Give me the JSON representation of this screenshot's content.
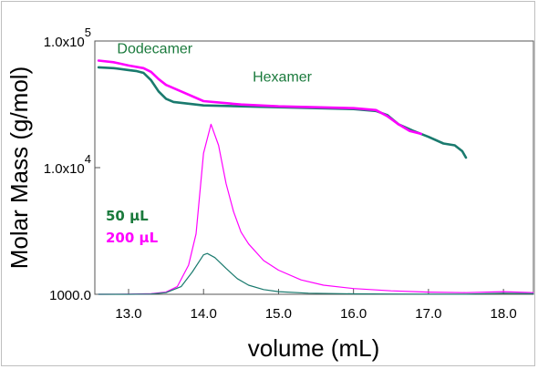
{
  "chart_data": {
    "type": "line",
    "xlabel": "volume (mL)",
    "ylabel": "Molar Mass (g/mol)",
    "xlim": [
      12.55,
      18.4
    ],
    "ylim": [
      1000,
      100000
    ],
    "y_scale": "log",
    "grid": false,
    "x_ticks": [
      "13.0",
      "14.0",
      "15.0",
      "16.0",
      "17.0",
      "18.0"
    ],
    "y_ticks": [
      {
        "value": 100000,
        "base": "1.0x10",
        "exp": "5"
      },
      {
        "value": 10000,
        "base": "1.0x10",
        "exp": "4"
      },
      {
        "value": 1000,
        "base": "1000.0",
        "exp": ""
      }
    ],
    "colors": {
      "s50": "#1a7a6e",
      "s200": "#ff00ff",
      "annotation": "#1a7a3c"
    },
    "annotations": [
      {
        "text": "Dodecamer",
        "x": 13.35,
        "y": 80000
      },
      {
        "text": "Hexamer",
        "x": 15.05,
        "y": 48000
      }
    ],
    "legend": [
      {
        "text": "50 µL",
        "color": "#1a7a3c"
      },
      {
        "text": "200 µL",
        "color": "#ff00ff"
      }
    ],
    "series": [
      {
        "name": "50 µL",
        "role": "molar_mass",
        "x": [
          12.6,
          12.8,
          13.0,
          13.1,
          13.2,
          13.3,
          13.4,
          13.5,
          13.6,
          13.8,
          14.0,
          14.5,
          15.0,
          15.5,
          16.0,
          16.3,
          16.45,
          16.6,
          16.8,
          17.0,
          17.2,
          17.35,
          17.45,
          17.5
        ],
        "y": [
          62000,
          61000,
          59000,
          58000,
          56000,
          49000,
          40000,
          35000,
          33000,
          32000,
          31000,
          30500,
          30000,
          29500,
          29000,
          28000,
          26000,
          22000,
          19500,
          17500,
          15500,
          15000,
          13500,
          12000
        ]
      },
      {
        "name": "200 µL",
        "role": "molar_mass",
        "x": [
          12.6,
          12.8,
          13.0,
          13.2,
          13.3,
          13.4,
          13.5,
          13.7,
          14.0,
          14.5,
          15.0,
          15.5,
          16.0,
          16.3,
          16.45,
          16.6,
          16.75,
          16.9
        ],
        "y": [
          70000,
          68000,
          64000,
          61000,
          57000,
          50000,
          45000,
          40000,
          33500,
          31500,
          30500,
          30000,
          29500,
          28500,
          25500,
          22000,
          19500,
          18500
        ]
      },
      {
        "name": "200 µL",
        "role": "concentration_trace",
        "x": [
          12.6,
          13.0,
          13.3,
          13.5,
          13.65,
          13.8,
          13.9,
          14.0,
          14.1,
          14.2,
          14.3,
          14.4,
          14.5,
          14.6,
          14.8,
          15.0,
          15.3,
          15.6,
          16.0,
          16.5,
          17.0,
          17.5,
          18.0,
          18.4
        ],
        "y": [
          1000,
          1002,
          1010,
          1040,
          1150,
          1700,
          3000,
          13000,
          22000,
          15000,
          7500,
          4500,
          3100,
          2500,
          1850,
          1550,
          1300,
          1180,
          1110,
          1065,
          1040,
          1030,
          1050,
          1030
        ]
      },
      {
        "name": "50 µL",
        "role": "concentration_trace",
        "x": [
          12.6,
          13.0,
          13.3,
          13.5,
          13.7,
          13.85,
          14.0,
          14.05,
          14.15,
          14.3,
          14.45,
          14.6,
          14.8,
          15.0,
          15.4,
          16.0,
          16.5,
          17.0,
          17.5,
          18.0,
          18.4
        ],
        "y": [
          1000,
          1000,
          1005,
          1030,
          1150,
          1500,
          2050,
          2100,
          1950,
          1600,
          1330,
          1180,
          1090,
          1050,
          1020,
          1008,
          1005,
          1003,
          1002,
          1020,
          1010
        ]
      }
    ]
  }
}
